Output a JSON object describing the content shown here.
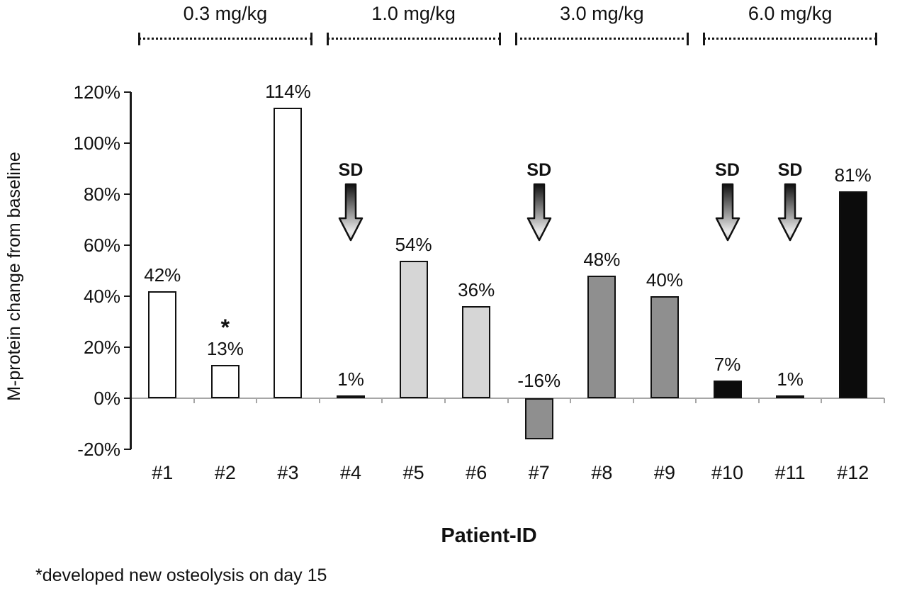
{
  "chart_data": {
    "type": "bar",
    "title": "",
    "ylabel": "M-protein change from baseline",
    "xlabel": "Patient-ID",
    "footnote": "*developed new osteolysis on day 15",
    "ylim": [
      -20,
      120
    ],
    "ytick_step": 20,
    "yticks": [
      120,
      100,
      80,
      60,
      40,
      20,
      0,
      -20
    ],
    "ytick_suffix": "%",
    "grid": false,
    "legend": false,
    "sd_label": "SD",
    "groups": [
      {
        "label": "0.3 mg/kg",
        "patients": [
          "#1",
          "#2",
          "#3"
        ],
        "color": "#ffffff"
      },
      {
        "label": "1.0 mg/kg",
        "patients": [
          "#4",
          "#5",
          "#6"
        ],
        "color": "#d6d6d6"
      },
      {
        "label": "3.0 mg/kg",
        "patients": [
          "#7",
          "#8",
          "#9"
        ],
        "color": "#8f8f8f"
      },
      {
        "label": "6.0 mg/kg",
        "patients": [
          "#10",
          "#11",
          "#12"
        ],
        "color": "#0c0c0c"
      }
    ],
    "categories": [
      "#1",
      "#2",
      "#3",
      "#4",
      "#5",
      "#6",
      "#7",
      "#8",
      "#9",
      "#10",
      "#11",
      "#12"
    ],
    "values": [
      42,
      13,
      114,
      1,
      54,
      36,
      -16,
      48,
      40,
      7,
      1,
      81
    ],
    "bars": [
      {
        "patient": "#1",
        "value": 42,
        "label": "42%",
        "group": 0,
        "sd": false,
        "asterisk": false
      },
      {
        "patient": "#2",
        "value": 13,
        "label": "13%",
        "group": 0,
        "sd": false,
        "asterisk": true
      },
      {
        "patient": "#3",
        "value": 114,
        "label": "114%",
        "group": 0,
        "sd": false,
        "asterisk": false
      },
      {
        "patient": "#4",
        "value": 1,
        "label": "1%",
        "group": 1,
        "sd": true,
        "asterisk": false
      },
      {
        "patient": "#5",
        "value": 54,
        "label": "54%",
        "group": 1,
        "sd": false,
        "asterisk": false
      },
      {
        "patient": "#6",
        "value": 36,
        "label": "36%",
        "group": 1,
        "sd": false,
        "asterisk": false
      },
      {
        "patient": "#7",
        "value": -16,
        "label": "-16%",
        "group": 2,
        "sd": true,
        "asterisk": false
      },
      {
        "patient": "#8",
        "value": 48,
        "label": "48%",
        "group": 2,
        "sd": false,
        "asterisk": false
      },
      {
        "patient": "#9",
        "value": 40,
        "label": "40%",
        "group": 2,
        "sd": false,
        "asterisk": false
      },
      {
        "patient": "#10",
        "value": 7,
        "label": "7%",
        "group": 3,
        "sd": true,
        "asterisk": false
      },
      {
        "patient": "#11",
        "value": 1,
        "label": "1%",
        "group": 3,
        "sd": true,
        "asterisk": false
      },
      {
        "patient": "#12",
        "value": 81,
        "label": "81%",
        "group": 3,
        "sd": false,
        "asterisk": false
      }
    ],
    "colors": {
      "axis": "#1a1a1a",
      "baseline": "#a6a6a6",
      "text": "#111111",
      "arrow_dark": "#101010",
      "arrow_light": "#ececec"
    }
  }
}
